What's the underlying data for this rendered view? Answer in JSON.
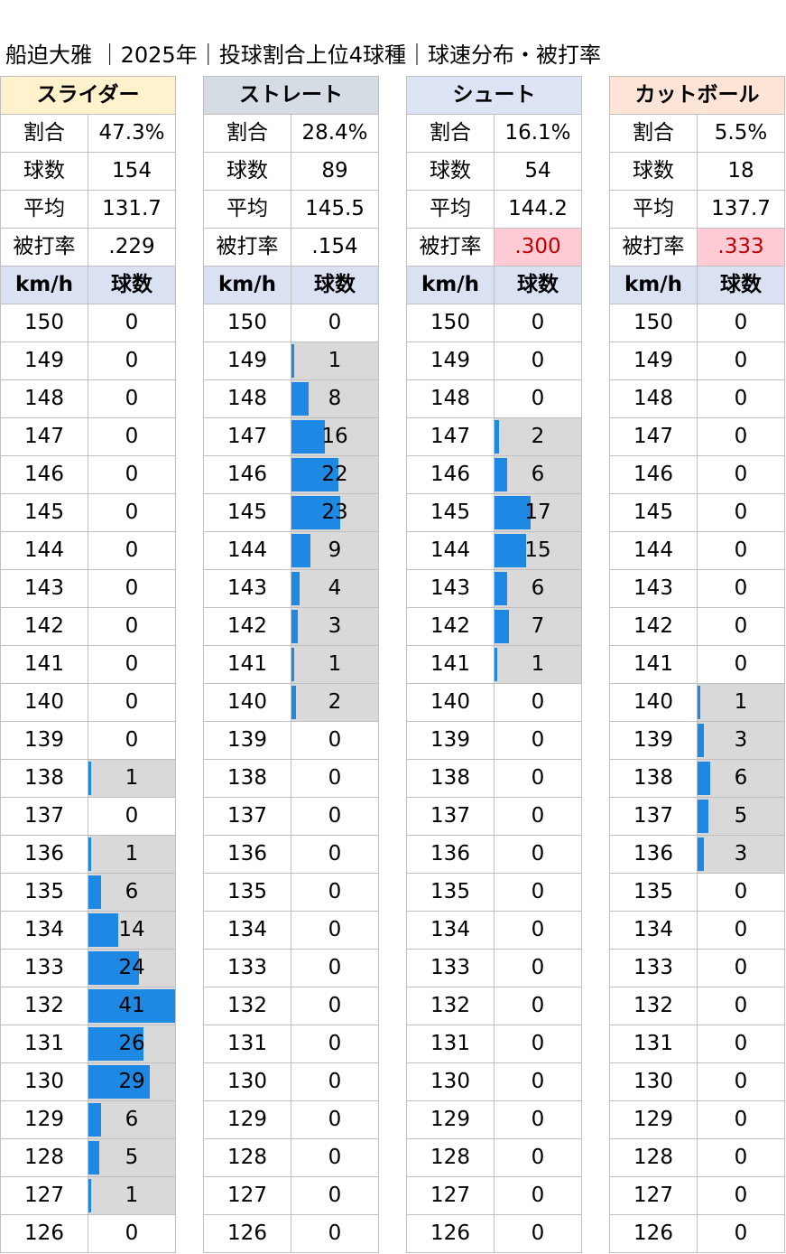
{
  "title": "船迫大雅 ｜2025年｜投球割合上位4球種｜球速分布・被打率",
  "labels": {
    "ratio": "割合",
    "count": "球数",
    "avg": "平均",
    "ba": "被打率",
    "kmh": "km/h",
    "balls": "球数"
  },
  "colors": {
    "bar": "#1e88e5",
    "bar_bg": "#d9d9d9",
    "highlight_bg": "#ffccd5",
    "highlight_text": "#c00000",
    "subheader_bg": "#d9e1f2"
  },
  "chart_data": {
    "type": "table",
    "speeds": [
      "150",
      "149",
      "148",
      "147",
      "146",
      "145",
      "144",
      "143",
      "142",
      "141",
      "140",
      "139",
      "138",
      "137",
      "136",
      "135",
      "134",
      "133",
      "132",
      "131",
      "130",
      "129",
      "128",
      "127",
      "126"
    ],
    "bar_max": 41,
    "pitches": [
      {
        "name": "スライダー",
        "header_color": "#fff2cc",
        "ratio": "47.3%",
        "count": "154",
        "avg": "131.7",
        "ba": ".229",
        "ba_highlight": false,
        "counts": [
          0,
          0,
          0,
          0,
          0,
          0,
          0,
          0,
          0,
          0,
          0,
          0,
          1,
          0,
          1,
          6,
          14,
          24,
          41,
          26,
          29,
          6,
          5,
          1,
          0
        ]
      },
      {
        "name": "ストレート",
        "header_color": "#d6dce4",
        "ratio": "28.4%",
        "count": "89",
        "avg": "145.5",
        "ba": ".154",
        "ba_highlight": false,
        "counts": [
          0,
          1,
          8,
          16,
          22,
          23,
          9,
          4,
          3,
          1,
          2,
          0,
          0,
          0,
          0,
          0,
          0,
          0,
          0,
          0,
          0,
          0,
          0,
          0,
          0
        ]
      },
      {
        "name": "シュート",
        "header_color": "#dde4f5",
        "ratio": "16.1%",
        "count": "54",
        "avg": "144.2",
        "ba": ".300",
        "ba_highlight": true,
        "counts": [
          0,
          0,
          0,
          2,
          6,
          17,
          15,
          6,
          7,
          1,
          0,
          0,
          0,
          0,
          0,
          0,
          0,
          0,
          0,
          0,
          0,
          0,
          0,
          0,
          0
        ]
      },
      {
        "name": "カットボール",
        "header_color": "#fce4d6",
        "ratio": "5.5%",
        "count": "18",
        "avg": "137.7",
        "ba": ".333",
        "ba_highlight": true,
        "counts": [
          0,
          0,
          0,
          0,
          0,
          0,
          0,
          0,
          0,
          0,
          1,
          3,
          6,
          5,
          3,
          0,
          0,
          0,
          0,
          0,
          0,
          0,
          0,
          0,
          0
        ]
      }
    ]
  }
}
